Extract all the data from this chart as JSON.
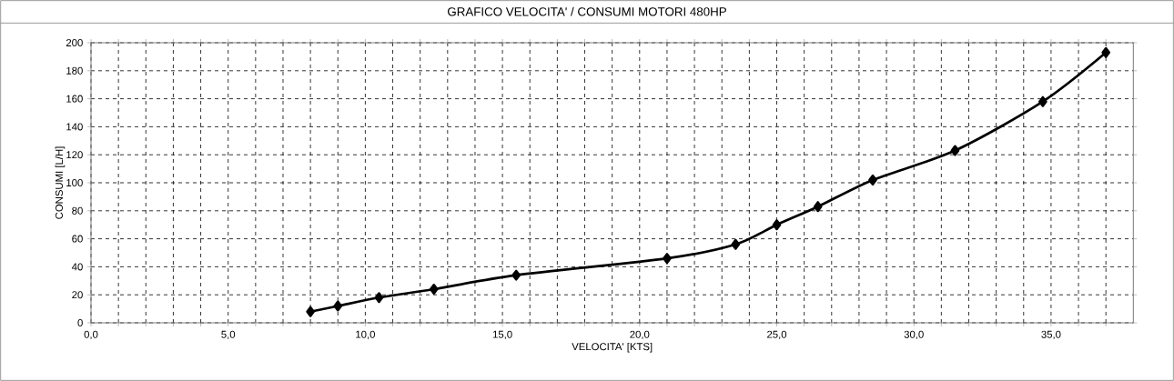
{
  "chart_data": {
    "type": "line",
    "title": "GRAFICO  VELOCITA' / CONSUMI  MOTORI 480HP",
    "xlabel": "VELOCITA'  [KTS]",
    "ylabel": "CONSUMI  [L/H]",
    "x": [
      8,
      9,
      10.5,
      12.5,
      15.5,
      21,
      23.5,
      25,
      26.5,
      28.5,
      31.5,
      34.7,
      37
    ],
    "series": [
      {
        "color": "#000000",
        "values": [
          8,
          12,
          18,
          24,
          34,
          46,
          56,
          70,
          83,
          102,
          123,
          158,
          193
        ]
      }
    ],
    "xlim": [
      0,
      38
    ],
    "ylim": [
      0,
      200
    ],
    "xticks": [
      {
        "value": 0,
        "label": "0,0"
      },
      {
        "value": 1,
        "label": null
      },
      {
        "value": 2,
        "label": null
      },
      {
        "value": 3,
        "label": null
      },
      {
        "value": 4,
        "label": null
      },
      {
        "value": 5,
        "label": "5,0"
      },
      {
        "value": 6,
        "label": null
      },
      {
        "value": 7,
        "label": null
      },
      {
        "value": 8,
        "label": null
      },
      {
        "value": 9,
        "label": null
      },
      {
        "value": 10,
        "label": "10,0"
      },
      {
        "value": 11,
        "label": null
      },
      {
        "value": 12,
        "label": null
      },
      {
        "value": 13,
        "label": null
      },
      {
        "value": 14,
        "label": null
      },
      {
        "value": 15,
        "label": "15,0"
      },
      {
        "value": 16,
        "label": null
      },
      {
        "value": 17,
        "label": null
      },
      {
        "value": 18,
        "label": null
      },
      {
        "value": 19,
        "label": null
      },
      {
        "value": 20,
        "label": "20,0"
      },
      {
        "value": 21,
        "label": null
      },
      {
        "value": 22,
        "label": null
      },
      {
        "value": 23,
        "label": null
      },
      {
        "value": 24,
        "label": null
      },
      {
        "value": 25,
        "label": "25,0"
      },
      {
        "value": 26,
        "label": null
      },
      {
        "value": 27,
        "label": null
      },
      {
        "value": 28,
        "label": null
      },
      {
        "value": 29,
        "label": null
      },
      {
        "value": 30,
        "label": "30,0"
      },
      {
        "value": 31,
        "label": null
      },
      {
        "value": 32,
        "label": null
      },
      {
        "value": 33,
        "label": null
      },
      {
        "value": 34,
        "label": null
      },
      {
        "value": 35,
        "label": "35,0"
      },
      {
        "value": 36,
        "label": null
      },
      {
        "value": 37,
        "label": null
      }
    ],
    "yticks": [
      0,
      20,
      40,
      60,
      80,
      100,
      120,
      140,
      160,
      180,
      200
    ],
    "grid": true,
    "marker": "diamond",
    "line_style": "solid"
  }
}
